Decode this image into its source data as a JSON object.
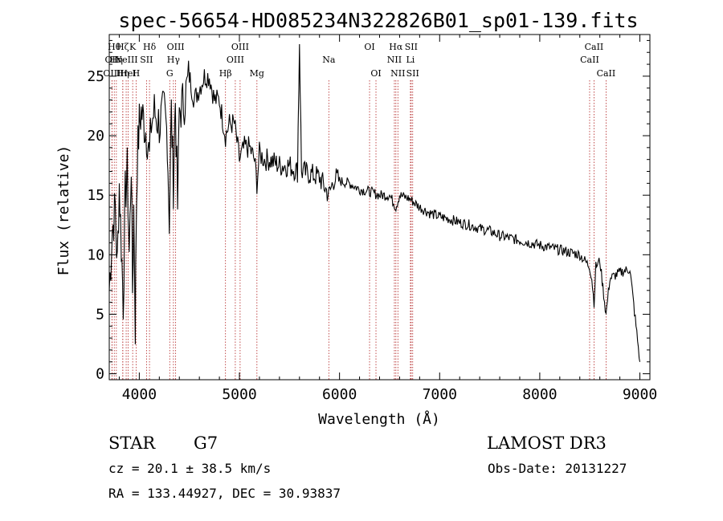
{
  "chart_data": {
    "type": "line",
    "title": "spec-56654-HD085234N322826B01_sp01-139.fits",
    "xlabel": "Wavelength (Å)",
    "ylabel": "Flux (relative)",
    "xlim": [
      3700,
      9100
    ],
    "ylim": [
      -0.5,
      28.5
    ],
    "xticks": [
      4000,
      5000,
      6000,
      7000,
      8000,
      9000
    ],
    "yticks": [
      0,
      5,
      10,
      15,
      20,
      25
    ],
    "series": [
      {
        "name": "spectrum",
        "x": [
          3700,
          3730,
          3760,
          3780,
          3800,
          3820,
          3840,
          3860,
          3880,
          3900,
          3920,
          3933,
          3945,
          3960,
          3968,
          3980,
          4000,
          4020,
          4050,
          4080,
          4101,
          4120,
          4150,
          4200,
          4250,
          4280,
          4300,
          4320,
          4340,
          4360,
          4383,
          4400,
          4450,
          4500,
          4550,
          4600,
          4650,
          4700,
          4750,
          4800,
          4861,
          4900,
          4950,
          5000,
          5050,
          5100,
          5150,
          5175,
          5200,
          5250,
          5300,
          5400,
          5500,
          5580,
          5600,
          5620,
          5700,
          5800,
          5893,
          5950,
          6000,
          6100,
          6200,
          6300,
          6400,
          6500,
          6563,
          6600,
          6700,
          6800,
          6900,
          7000,
          7100,
          7200,
          7300,
          7400,
          7500,
          7600,
          7700,
          7800,
          7900,
          8000,
          8100,
          8200,
          8300,
          8400,
          8498,
          8520,
          8542,
          8560,
          8600,
          8662,
          8700,
          8800,
          8900,
          9000
        ],
        "y": [
          7,
          12,
          14,
          9,
          16,
          11,
          6,
          15,
          17,
          10,
          18,
          7,
          14,
          4,
          12,
          18,
          21,
          22,
          21,
          20,
          18,
          21,
          22,
          21,
          22,
          20,
          13,
          22,
          16,
          23,
          14,
          22,
          23,
          25,
          23,
          24,
          25,
          25,
          23,
          23,
          20,
          21,
          21,
          18,
          19,
          19,
          18,
          16,
          18.5,
          18,
          18,
          17.5,
          17.5,
          17,
          28,
          17,
          16.8,
          16.5,
          15,
          16.5,
          16.2,
          16,
          15.5,
          15.3,
          15,
          15,
          14,
          15,
          14.7,
          14,
          13.5,
          13.2,
          13,
          12.7,
          12.5,
          12.2,
          12,
          11.6,
          11.4,
          11.2,
          11,
          10.8,
          10.6,
          10.4,
          10.2,
          10,
          9,
          8,
          6,
          9,
          9.5,
          5,
          8,
          8.5,
          8.8,
          1
        ]
      }
    ],
    "line_ids": [
      {
        "wl": 3750,
        "row": 1,
        "label": "Hθ"
      },
      {
        "wl": 3727,
        "row": 2,
        "label": "OII"
      },
      {
        "wl": 3771,
        "row": 2,
        "label": "Hη"
      },
      {
        "wl": 3727,
        "row": 3,
        "label": "OIII"
      },
      {
        "wl": 3835,
        "row": 3,
        "label": "Hη"
      },
      {
        "wl": 3835,
        "row": 1,
        "label": "Hζ"
      },
      {
        "wl": 3869,
        "row": 2,
        "label": "NeIII"
      },
      {
        "wl": 3889,
        "row": 3,
        "label": "HeI"
      },
      {
        "wl": 3934,
        "row": 1,
        "label": "K"
      },
      {
        "wl": 3968,
        "row": 3,
        "label": "H"
      },
      {
        "wl": 4072,
        "row": 2,
        "label": "SII"
      },
      {
        "wl": 4102,
        "row": 1,
        "label": "Hδ"
      },
      {
        "wl": 4304,
        "row": 3,
        "label": "G"
      },
      {
        "wl": 4341,
        "row": 2,
        "label": "Hγ"
      },
      {
        "wl": 4363,
        "row": 1,
        "label": "OIII"
      },
      {
        "wl": 4861,
        "row": 3,
        "label": "Hβ"
      },
      {
        "wl": 4959,
        "row": 2,
        "label": "OIII"
      },
      {
        "wl": 5007,
        "row": 1,
        "label": "OIII"
      },
      {
        "wl": 5175,
        "row": 3,
        "label": "Mg"
      },
      {
        "wl": 5893,
        "row": 2,
        "label": "Na"
      },
      {
        "wl": 6300,
        "row": 1,
        "label": "OI"
      },
      {
        "wl": 6364,
        "row": 3,
        "label": "OI"
      },
      {
        "wl": 6548,
        "row": 2,
        "label": "NII"
      },
      {
        "wl": 6563,
        "row": 1,
        "label": "Hα"
      },
      {
        "wl": 6583,
        "row": 3,
        "label": "NII"
      },
      {
        "wl": 6708,
        "row": 2,
        "label": "Li"
      },
      {
        "wl": 6716,
        "row": 1,
        "label": "SII"
      },
      {
        "wl": 6731,
        "row": 3,
        "label": "SII"
      },
      {
        "wl": 8498,
        "row": 2,
        "label": "CaII"
      },
      {
        "wl": 8542,
        "row": 1,
        "label": "CaII"
      },
      {
        "wl": 8662,
        "row": 3,
        "label": "CaII"
      }
    ]
  },
  "info": {
    "object_class": "STAR",
    "subclass": "G7",
    "survey": "LAMOST DR3",
    "cz_line": "cz = 20.1 ± 38.5 km/s",
    "obs_date": "Obs-Date: 20131227",
    "coords": "RA = 133.44927, DEC =  30.93837"
  }
}
